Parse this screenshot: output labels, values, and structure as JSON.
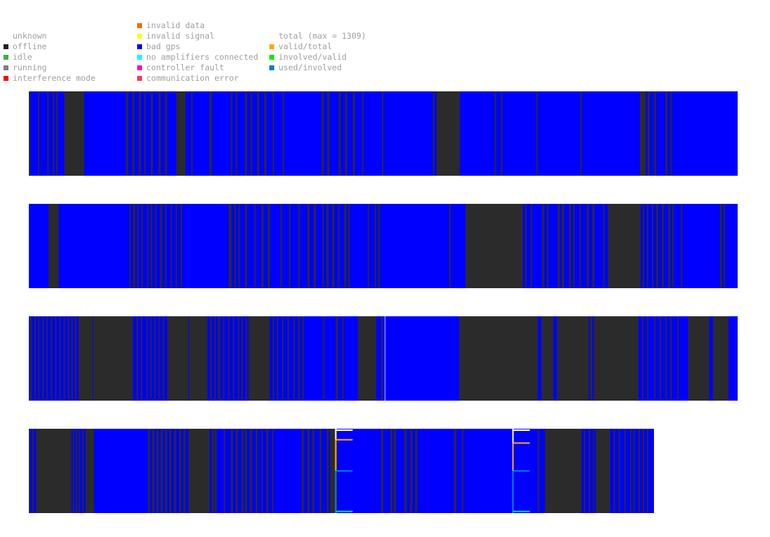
{
  "legend": {
    "status": [
      {
        "label": "unknown",
        "color": ""
      },
      {
        "label": "offline",
        "color": "#222222"
      },
      {
        "label": "idle",
        "color": "#3cb04a"
      },
      {
        "label": "running",
        "color": "#808080"
      },
      {
        "label": "interference mode",
        "color": "#ff0000"
      }
    ],
    "errors": [
      {
        "label": "invalid data",
        "color": "#ff6600"
      },
      {
        "label": "invalid signal",
        "color": "#ffff00"
      },
      {
        "label": "bad gps",
        "color": "#0000ff"
      },
      {
        "label": "no amplifiers connected",
        "color": "#00ffff"
      },
      {
        "label": "controller fault",
        "color": "#ff00cc"
      },
      {
        "label": "communication error",
        "color": "#ff3366"
      }
    ],
    "ratios": [
      {
        "label": "total (max = 1309)",
        "color": ""
      },
      {
        "label": "valid/total",
        "color": "#ffaa00"
      },
      {
        "label": "involved/valid",
        "color": "#00ee00"
      },
      {
        "label": "used/involved",
        "color": "#0077ee"
      }
    ]
  },
  "chart_data": {
    "type": "timeline",
    "total_max": 1309,
    "state_colors": {
      "offline": "#2b2b2b",
      "bad gps": "#0000ff"
    },
    "rows": [
      {
        "name": "",
        "length": 1,
        "base_state": "bad gps",
        "offline_spans": [
          [
            0.0,
            0.002
          ],
          [
            0.013,
            0.015
          ],
          [
            0.026,
            0.028
          ],
          [
            0.034,
            0.036
          ],
          [
            0.039,
            0.041
          ],
          [
            0.05,
            0.078
          ],
          [
            0.137,
            0.14
          ],
          [
            0.146,
            0.149
          ],
          [
            0.155,
            0.158
          ],
          [
            0.163,
            0.165
          ],
          [
            0.172,
            0.175
          ],
          [
            0.183,
            0.186
          ],
          [
            0.192,
            0.195
          ],
          [
            0.208,
            0.221
          ],
          [
            0.229,
            0.231
          ],
          [
            0.255,
            0.258
          ],
          [
            0.285,
            0.287
          ],
          [
            0.292,
            0.294
          ],
          [
            0.305,
            0.308
          ],
          [
            0.313,
            0.315
          ],
          [
            0.322,
            0.325
          ],
          [
            0.332,
            0.335
          ],
          [
            0.344,
            0.346
          ],
          [
            0.358,
            0.36
          ],
          [
            0.413,
            0.416
          ],
          [
            0.421,
            0.424
          ],
          [
            0.437,
            0.44
          ],
          [
            0.446,
            0.449
          ],
          [
            0.457,
            0.46
          ],
          [
            0.47,
            0.472
          ],
          [
            0.498,
            0.5
          ],
          [
            0.57,
            0.572
          ],
          [
            0.575,
            0.608
          ],
          [
            0.657,
            0.659
          ],
          [
            0.666,
            0.668
          ],
          [
            0.716,
            0.718
          ],
          [
            0.778,
            0.78
          ],
          [
            0.862,
            0.87
          ],
          [
            0.873,
            0.876
          ],
          [
            0.882,
            0.885
          ],
          [
            0.898,
            0.901
          ],
          [
            0.905,
            0.907
          ]
        ]
      },
      {
        "name": "",
        "length": 1,
        "base_state": "bad gps",
        "offline_spans": [
          [
            0.028,
            0.042
          ],
          [
            0.142,
            0.144
          ],
          [
            0.147,
            0.15
          ],
          [
            0.153,
            0.155
          ],
          [
            0.159,
            0.161
          ],
          [
            0.167,
            0.169
          ],
          [
            0.172,
            0.174
          ],
          [
            0.178,
            0.18
          ],
          [
            0.185,
            0.188
          ],
          [
            0.192,
            0.194
          ],
          [
            0.2,
            0.202
          ],
          [
            0.207,
            0.209
          ],
          [
            0.214,
            0.216
          ],
          [
            0.282,
            0.286
          ],
          [
            0.29,
            0.292
          ],
          [
            0.296,
            0.298
          ],
          [
            0.305,
            0.308
          ],
          [
            0.318,
            0.32
          ],
          [
            0.328,
            0.331
          ],
          [
            0.337,
            0.34
          ],
          [
            0.355,
            0.357
          ],
          [
            0.367,
            0.369
          ],
          [
            0.38,
            0.382
          ],
          [
            0.393,
            0.396
          ],
          [
            0.402,
            0.405
          ],
          [
            0.414,
            0.416
          ],
          [
            0.42,
            0.423
          ],
          [
            0.428,
            0.431
          ],
          [
            0.436,
            0.438
          ],
          [
            0.445,
            0.448
          ],
          [
            0.451,
            0.453
          ],
          [
            0.478,
            0.48
          ],
          [
            0.488,
            0.49
          ],
          [
            0.493,
            0.495
          ],
          [
            0.593,
            0.595
          ],
          [
            0.616,
            0.697
          ],
          [
            0.7,
            0.702
          ],
          [
            0.708,
            0.71
          ],
          [
            0.724,
            0.727
          ],
          [
            0.731,
            0.733
          ],
          [
            0.746,
            0.749
          ],
          [
            0.752,
            0.755
          ],
          [
            0.762,
            0.765
          ],
          [
            0.768,
            0.77
          ],
          [
            0.777,
            0.779
          ],
          [
            0.787,
            0.79
          ],
          [
            0.795,
            0.798
          ],
          [
            0.81,
            0.812
          ],
          [
            0.817,
            0.82
          ],
          [
            0.82,
            0.863
          ],
          [
            0.866,
            0.868
          ],
          [
            0.872,
            0.874
          ],
          [
            0.879,
            0.881
          ],
          [
            0.885,
            0.888
          ],
          [
            0.893,
            0.896
          ],
          [
            0.902,
            0.905
          ],
          [
            0.908,
            0.91
          ],
          [
            0.92,
            0.922
          ],
          [
            0.975,
            0.978
          ],
          [
            0.98,
            0.982
          ]
        ]
      },
      {
        "name": "",
        "length": 1,
        "base_state": "bad gps",
        "offline_spans": [
          [
            0.002,
            0.004
          ],
          [
            0.008,
            0.01
          ],
          [
            0.013,
            0.015
          ],
          [
            0.019,
            0.021
          ],
          [
            0.025,
            0.027
          ],
          [
            0.031,
            0.033
          ],
          [
            0.037,
            0.039
          ],
          [
            0.043,
            0.045
          ],
          [
            0.049,
            0.051
          ],
          [
            0.055,
            0.057
          ],
          [
            0.06,
            0.062
          ],
          [
            0.065,
            0.067
          ],
          [
            0.07,
            0.072
          ],
          [
            0.07,
            0.09
          ],
          [
            0.091,
            0.147
          ],
          [
            0.152,
            0.154
          ],
          [
            0.158,
            0.16
          ],
          [
            0.166,
            0.168
          ],
          [
            0.171,
            0.173
          ],
          [
            0.177,
            0.179
          ],
          [
            0.183,
            0.185
          ],
          [
            0.189,
            0.191
          ],
          [
            0.195,
            0.197
          ],
          [
            0.197,
            0.225
          ],
          [
            0.226,
            0.252
          ],
          [
            0.256,
            0.258
          ],
          [
            0.262,
            0.264
          ],
          [
            0.267,
            0.27
          ],
          [
            0.274,
            0.276
          ],
          [
            0.281,
            0.283
          ],
          [
            0.288,
            0.29
          ],
          [
            0.295,
            0.297
          ],
          [
            0.3,
            0.302
          ],
          [
            0.306,
            0.308
          ],
          [
            0.31,
            0.34
          ],
          [
            0.344,
            0.346
          ],
          [
            0.35,
            0.352
          ],
          [
            0.357,
            0.359
          ],
          [
            0.365,
            0.367
          ],
          [
            0.373,
            0.375
          ],
          [
            0.38,
            0.382
          ],
          [
            0.386,
            0.388
          ],
          [
            0.415,
            0.417
          ],
          [
            0.433,
            0.436
          ],
          [
            0.442,
            0.444
          ],
          [
            0.464,
            0.466
          ],
          [
            0.466,
            0.49
          ],
          [
            0.497,
            0.499
          ],
          [
            0.607,
            0.718
          ],
          [
            0.723,
            0.74
          ],
          [
            0.745,
            0.79
          ],
          [
            0.792,
            0.795
          ],
          [
            0.797,
            0.86
          ],
          [
            0.865,
            0.867
          ],
          [
            0.872,
            0.874
          ],
          [
            0.882,
            0.884
          ],
          [
            0.89,
            0.892
          ],
          [
            0.898,
            0.9
          ],
          [
            0.905,
            0.907
          ],
          [
            0.915,
            0.917
          ],
          [
            0.93,
            0.96
          ],
          [
            0.965,
            0.987
          ]
        ]
      },
      {
        "name": "",
        "length": 0.882,
        "base_state": "bad gps",
        "offline_spans": [
          [
            0.0,
            0.002
          ],
          [
            0.005,
            0.007
          ],
          [
            0.01,
            0.06
          ],
          [
            0.062,
            0.064
          ],
          [
            0.066,
            0.068
          ],
          [
            0.07,
            0.072
          ],
          [
            0.075,
            0.077
          ],
          [
            0.08,
            0.082
          ],
          [
            0.08,
            0.092
          ],
          [
            0.168,
            0.171
          ],
          [
            0.174,
            0.177
          ],
          [
            0.18,
            0.183
          ],
          [
            0.186,
            0.189
          ],
          [
            0.192,
            0.195
          ],
          [
            0.198,
            0.201
          ],
          [
            0.205,
            0.208
          ],
          [
            0.212,
            0.215
          ],
          [
            0.218,
            0.221
          ],
          [
            0.225,
            0.255
          ],
          [
            0.258,
            0.261
          ],
          [
            0.262,
            0.265
          ],
          [
            0.275,
            0.277
          ],
          [
            0.285,
            0.288
          ],
          [
            0.292,
            0.295
          ],
          [
            0.3,
            0.303
          ],
          [
            0.305,
            0.308
          ],
          [
            0.312,
            0.315
          ],
          [
            0.32,
            0.323
          ],
          [
            0.328,
            0.33
          ],
          [
            0.335,
            0.338
          ],
          [
            0.343,
            0.345
          ],
          [
            0.385,
            0.388
          ],
          [
            0.393,
            0.396
          ],
          [
            0.4,
            0.403
          ],
          [
            0.41,
            0.413
          ],
          [
            0.42,
            0.423
          ],
          [
            0.425,
            0.435
          ],
          [
            0.497,
            0.5
          ],
          [
            0.51,
            0.513
          ],
          [
            0.515,
            0.518
          ],
          [
            0.53,
            0.533
          ],
          [
            0.538,
            0.541
          ],
          [
            0.545,
            0.548
          ],
          [
            0.6,
            0.603
          ],
          [
            0.611,
            0.613
          ],
          [
            0.718,
            0.72
          ],
          [
            0.728,
            0.78
          ],
          [
            0.783,
            0.785
          ],
          [
            0.79,
            0.792
          ],
          [
            0.796,
            0.798
          ],
          [
            0.8,
            0.82
          ],
          [
            0.825,
            0.827
          ],
          [
            0.832,
            0.834
          ],
          [
            0.84,
            0.842
          ],
          [
            0.848,
            0.85
          ],
          [
            0.853,
            0.855
          ],
          [
            0.86,
            0.862
          ],
          [
            0.866,
            0.868
          ],
          [
            0.872,
            0.874
          ]
        ],
        "bracket_markers": [
          {
            "position": 0.433,
            "valid_total": 0.87,
            "involved_valid": 0.5,
            "used_involved": 0.02
          },
          {
            "position": 0.683,
            "valid_total": 0.83,
            "involved_valid": 0.5,
            "used_involved": 0.02
          }
        ]
      }
    ]
  }
}
